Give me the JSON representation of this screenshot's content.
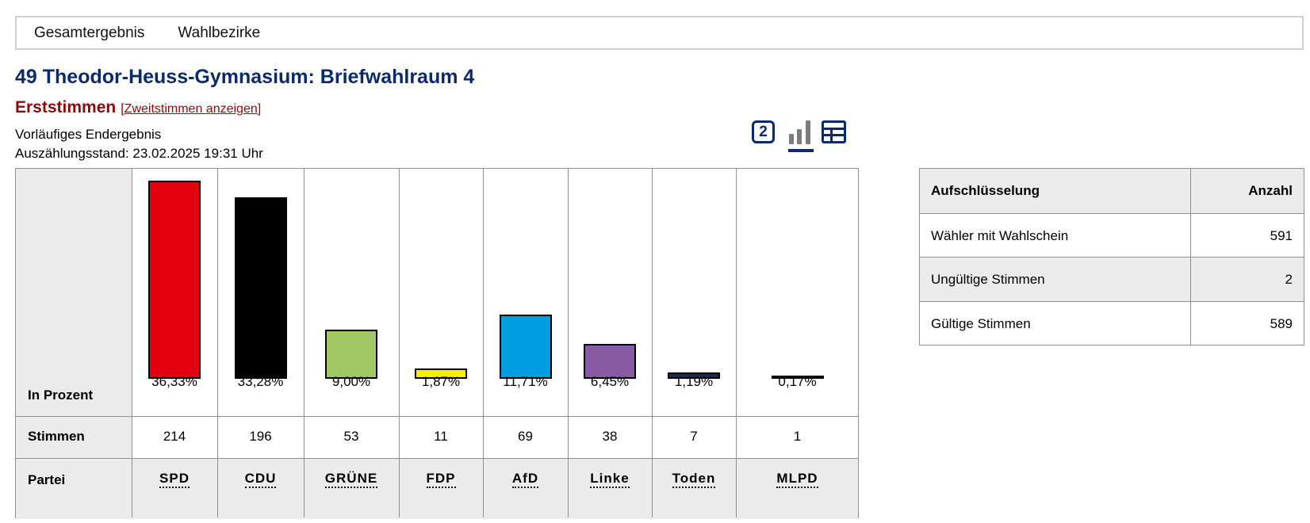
{
  "nav": {
    "tabs": [
      "Gesamtergebnis",
      "Wahlbezirke"
    ]
  },
  "title": "49 Theodor-Heuss-Gymnasium: Briefwahlraum 4",
  "vote_type": {
    "label": "Erststimmen",
    "toggle_link": "[Zweitstimmen anzeigen]"
  },
  "status": {
    "result": "Vorläufiges Endergebnis",
    "count_status": "Auszählungsstand: 23.02.2025 19:31 Uhr"
  },
  "view_icons": {
    "second_vote_badge": "2",
    "chart_icon": "bar-chart-icon",
    "table_icon": "table-icon"
  },
  "row_labels": {
    "percent": "In Prozent",
    "votes": "Stimmen",
    "party": "Partei"
  },
  "chart_data": {
    "type": "bar",
    "categories": [
      "SPD",
      "CDU",
      "GRÜNE",
      "FDP",
      "AfD",
      "Linke",
      "Toden",
      "MLPD"
    ],
    "values": [
      36.33,
      33.28,
      9.0,
      1.87,
      11.71,
      6.45,
      1.19,
      0.17
    ],
    "value_labels": [
      "36,33%",
      "33,28%",
      "9,00%",
      "1,87%",
      "11,71%",
      "6,45%",
      "1,19%",
      "0,17%"
    ],
    "votes": [
      "214",
      "196",
      "53",
      "11",
      "69",
      "38",
      "7",
      "1"
    ],
    "colors": [
      "#e3000f",
      "#000000",
      "#a0c864",
      "#ffed00",
      "#009ee0",
      "#8a5ba5",
      "#1b2a4a",
      "#000000"
    ],
    "ylim": [
      0,
      36.33
    ]
  },
  "breakdown": {
    "headers": [
      "Aufschlüsselung",
      "Anzahl"
    ],
    "rows": [
      [
        "Wähler mit Wahlschein",
        "591"
      ],
      [
        "Ungültige Stimmen",
        "2"
      ],
      [
        "Gültige Stimmen",
        "589"
      ]
    ]
  }
}
